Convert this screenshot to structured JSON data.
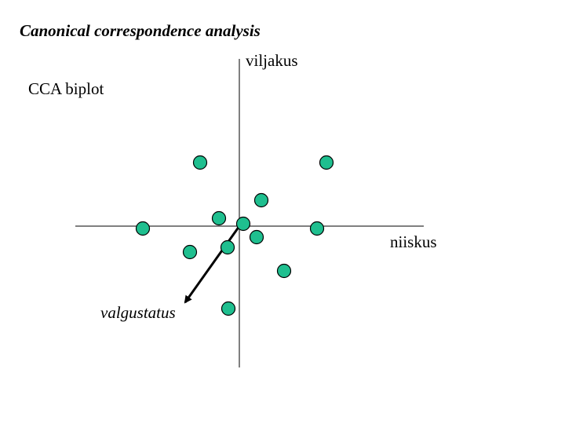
{
  "header": {
    "title": "Canonical correspondence analysis"
  },
  "diagram": {
    "subtitle": "CCA biplot",
    "y_axis_label": "viljakus",
    "x_axis_label": "niiskus",
    "arrow_label": "valgustatus"
  }
}
